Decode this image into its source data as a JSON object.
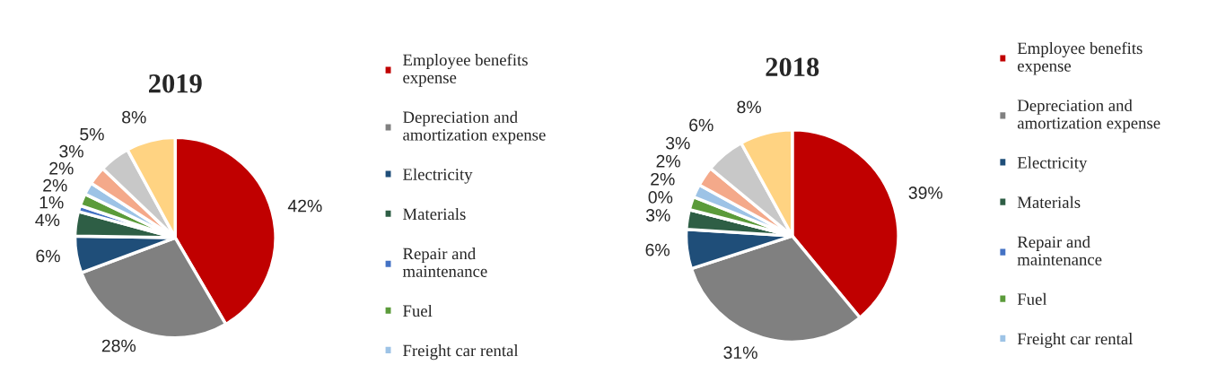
{
  "chart_data": [
    {
      "type": "pie",
      "title": "2019",
      "categories": [
        "Employee benefits expense",
        "Depreciation and amortization expense",
        "Electricity",
        "Materials",
        "Repair and maintenance",
        "Fuel",
        "Freight car rental",
        null,
        null,
        null
      ],
      "values": [
        42,
        28,
        6,
        4,
        1,
        2,
        2,
        3,
        5,
        8
      ],
      "value_labels": [
        "42%",
        "28%",
        "6%",
        "4%",
        "1%",
        "2%",
        "2%",
        "3%",
        "5%",
        "8%"
      ],
      "colors": [
        "#c00000",
        "#808080",
        "#1f4e79",
        "#2e5e45",
        "#4472c4",
        "#5b9b3a",
        "#9dc3e6",
        "#f4a98a",
        "#c8c8c8",
        "#ffd382"
      ],
      "legend": "right"
    },
    {
      "type": "pie",
      "title": "2018",
      "categories": [
        "Employee benefits expense",
        "Depreciation and amortization expense",
        "Electricity",
        "Materials",
        "Repair and maintenance",
        "Fuel",
        "Freight car rental",
        null,
        null,
        null
      ],
      "values": [
        39,
        31,
        6,
        3,
        0,
        2,
        2,
        3,
        6,
        8
      ],
      "value_labels": [
        "39%",
        "31%",
        "6%",
        "3%",
        "0%",
        "2%",
        "2%",
        "3%",
        "6%",
        "8%"
      ],
      "colors": [
        "#c00000",
        "#808080",
        "#1f4e79",
        "#2e5e45",
        "#4472c4",
        "#5b9b3a",
        "#9dc3e6",
        "#f4a98a",
        "#c8c8c8",
        "#ffd382"
      ],
      "legend": "right"
    }
  ]
}
